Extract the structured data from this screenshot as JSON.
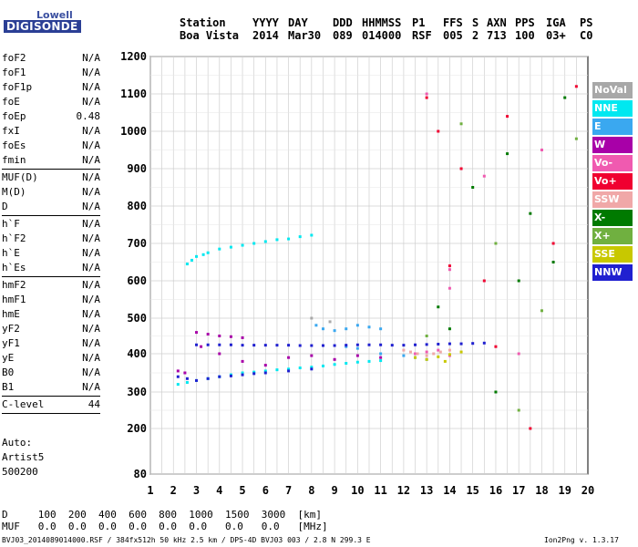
{
  "logo": {
    "line1": "Lowell",
    "line2": "DIGISONDE"
  },
  "header": {
    "cols": [
      {
        "top": "Station",
        "bottom": "Boa Vista"
      },
      {
        "top": "YYYY",
        "bottom": "2014"
      },
      {
        "top": "DAY",
        "bottom": "Mar30"
      },
      {
        "top": "DDD",
        "bottom": "089"
      },
      {
        "top": "HHMMSS",
        "bottom": "014000"
      },
      {
        "top": "P1",
        "bottom": "RSF"
      },
      {
        "top": "FFS",
        "bottom": "005"
      },
      {
        "top": "S",
        "bottom": "2"
      },
      {
        "top": "AXN",
        "bottom": "713"
      },
      {
        "top": "PPS",
        "bottom": "100"
      },
      {
        "top": "IGA",
        "bottom": "03+"
      },
      {
        "top": "PS",
        "bottom": "C0"
      }
    ]
  },
  "params": [
    [
      {
        "name": "foF2",
        "value": "N/A"
      },
      {
        "name": "foF1",
        "value": "N/A"
      },
      {
        "name": "foF1p",
        "value": "N/A"
      },
      {
        "name": "foE",
        "value": "N/A"
      },
      {
        "name": "foEp",
        "value": "0.48"
      },
      {
        "name": "fxI",
        "value": "N/A"
      },
      {
        "name": "foEs",
        "value": "N/A"
      },
      {
        "name": "fmin",
        "value": "N/A"
      }
    ],
    [
      {
        "name": "MUF(D)",
        "value": "N/A"
      },
      {
        "name": "M(D)",
        "value": "N/A"
      },
      {
        "name": "D",
        "value": "N/A"
      }
    ],
    [
      {
        "name": "h`F",
        "value": "N/A"
      },
      {
        "name": "h`F2",
        "value": "N/A"
      },
      {
        "name": "h`E",
        "value": "N/A"
      },
      {
        "name": "h`Es",
        "value": "N/A"
      }
    ],
    [
      {
        "name": "hmF2",
        "value": "N/A"
      },
      {
        "name": "hmF1",
        "value": "N/A"
      },
      {
        "name": "hmE",
        "value": "N/A"
      },
      {
        "name": "yF2",
        "value": "N/A"
      },
      {
        "name": "yF1",
        "value": "N/A"
      },
      {
        "name": "yE",
        "value": "N/A"
      },
      {
        "name": "B0",
        "value": "N/A"
      },
      {
        "name": "B1",
        "value": "N/A"
      }
    ],
    [
      {
        "name": "C-level",
        "value": "44"
      }
    ]
  ],
  "auto": [
    "Auto:",
    "Artist5",
    "500200"
  ],
  "legend": [
    {
      "label": "NoVal",
      "color": "#a8a8a8"
    },
    {
      "label": "NNE",
      "color": "#00e8f0"
    },
    {
      "label": "E",
      "color": "#3aa8f0"
    },
    {
      "label": "W",
      "color": "#a800a8"
    },
    {
      "label": "Vo-",
      "color": "#f05ab0"
    },
    {
      "label": "Vo+",
      "color": "#f00030"
    },
    {
      "label": "SSW",
      "color": "#f0a8a8"
    },
    {
      "label": "X-",
      "color": "#007a00"
    },
    {
      "label": "X+",
      "color": "#70b040"
    },
    {
      "label": "SSE",
      "color": "#c8c800"
    },
    {
      "label": "NNW",
      "color": "#2020d0"
    }
  ],
  "muf_table": {
    "row1": "D     100  200  400  600  800  1000  1500  3000  [km]",
    "row2": "MUF   0.0  0.0  0.0  0.0  0.0  0.0   0.0   0.0   [MHz]"
  },
  "footer": {
    "left": "BVJ03_2014089014000.RSF / 384fx512h 50 kHz 2.5 km / DPS-4D BVJ03 003 / 2.8 N 299.3 E",
    "right": "Ion2Png v. 1.3.17"
  },
  "chart_data": {
    "type": "scatter",
    "title": "",
    "xlabel": "",
    "ylabel": "",
    "xlim": [
      1,
      20
    ],
    "ylim": [
      80,
      1200
    ],
    "x_ticks": [
      1,
      2,
      3,
      4,
      5,
      6,
      7,
      8,
      9,
      10,
      11,
      12,
      13,
      14,
      15,
      16,
      17,
      18,
      19,
      20
    ],
    "y_ticks": [
      80,
      200,
      300,
      400,
      500,
      600,
      700,
      800,
      900,
      1000,
      1100,
      1200
    ],
    "grid": true,
    "legend_position": "right",
    "series": [
      {
        "name": "NNE",
        "color": "#00e8f0",
        "points": [
          [
            2.6,
            645
          ],
          [
            2.8,
            655
          ],
          [
            3.0,
            665
          ],
          [
            3.3,
            670
          ],
          [
            3.5,
            675
          ],
          [
            4.0,
            685
          ],
          [
            4.5,
            690
          ],
          [
            5.0,
            695
          ],
          [
            5.5,
            700
          ],
          [
            6.0,
            705
          ],
          [
            6.5,
            710
          ],
          [
            7.0,
            712
          ],
          [
            7.5,
            718
          ],
          [
            8.0,
            722
          ],
          [
            2.2,
            320
          ],
          [
            2.6,
            325
          ],
          [
            3.0,
            330
          ],
          [
            3.5,
            335
          ],
          [
            4.0,
            340
          ],
          [
            4.5,
            345
          ],
          [
            5.0,
            350
          ],
          [
            5.5,
            352
          ],
          [
            6.0,
            355
          ],
          [
            6.5,
            358
          ],
          [
            7.0,
            360
          ],
          [
            7.5,
            363
          ],
          [
            8.0,
            365
          ],
          [
            8.5,
            368
          ],
          [
            9.0,
            372
          ],
          [
            9.5,
            375
          ],
          [
            10.0,
            378
          ],
          [
            10.5,
            380
          ],
          [
            11.0,
            382
          ]
        ]
      },
      {
        "name": "E",
        "color": "#3aa8f0",
        "points": [
          [
            8.2,
            480
          ],
          [
            8.5,
            470
          ],
          [
            9.0,
            465
          ],
          [
            9.5,
            470
          ],
          [
            10.0,
            480
          ],
          [
            10.5,
            475
          ],
          [
            11.0,
            470
          ],
          [
            9.5,
            420
          ],
          [
            10.0,
            415
          ],
          [
            11.0,
            400
          ],
          [
            12.0,
            395
          ],
          [
            12.5,
            390
          ],
          [
            13.0,
            385
          ]
        ]
      },
      {
        "name": "W",
        "color": "#a800a8",
        "points": [
          [
            2.2,
            355
          ],
          [
            2.5,
            350
          ],
          [
            3.0,
            460
          ],
          [
            3.5,
            455
          ],
          [
            4.0,
            450
          ],
          [
            4.5,
            448
          ],
          [
            5.0,
            445
          ],
          [
            3.2,
            420
          ],
          [
            4.0,
            400
          ],
          [
            5.0,
            380
          ],
          [
            6.0,
            370
          ],
          [
            7.0,
            390
          ],
          [
            8.0,
            395
          ],
          [
            9.0,
            385
          ],
          [
            10.0,
            395
          ],
          [
            11.0,
            390
          ]
        ]
      },
      {
        "name": "Vo-",
        "color": "#f05ab0",
        "points": [
          [
            12.5,
            400
          ],
          [
            13.0,
            405
          ],
          [
            13.5,
            410
          ],
          [
            14.0,
            395
          ],
          [
            14.0,
            630
          ],
          [
            14.0,
            580
          ],
          [
            13.0,
            1100
          ],
          [
            15.5,
            880
          ],
          [
            18.0,
            950
          ],
          [
            17.0,
            400
          ]
        ]
      },
      {
        "name": "Vo+",
        "color": "#f00030",
        "points": [
          [
            13.0,
            1090
          ],
          [
            13.5,
            1000
          ],
          [
            14.0,
            640
          ],
          [
            14.5,
            900
          ],
          [
            16.0,
            420
          ],
          [
            17.5,
            200
          ],
          [
            18.5,
            700
          ],
          [
            19.5,
            1120
          ],
          [
            15.5,
            600
          ],
          [
            16.5,
            1040
          ]
        ]
      },
      {
        "name": "SSW",
        "color": "#f0a8a8",
        "points": [
          [
            12.0,
            410
          ],
          [
            12.3,
            405
          ],
          [
            12.6,
            400
          ],
          [
            13.0,
            395
          ],
          [
            13.3,
            400
          ],
          [
            13.6,
            405
          ],
          [
            14.0,
            410
          ]
        ]
      },
      {
        "name": "X-",
        "color": "#007a00",
        "points": [
          [
            13.5,
            530
          ],
          [
            14.0,
            470
          ],
          [
            16.5,
            940
          ],
          [
            17.5,
            780
          ],
          [
            18.5,
            650
          ],
          [
            19.0,
            1090
          ],
          [
            15.0,
            850
          ],
          [
            16.0,
            300
          ],
          [
            17.0,
            600
          ]
        ]
      },
      {
        "name": "X+",
        "color": "#70b040",
        "points": [
          [
            13.0,
            450
          ],
          [
            14.5,
            1020
          ],
          [
            18.0,
            520
          ],
          [
            19.5,
            980
          ],
          [
            16.0,
            700
          ],
          [
            17.0,
            250
          ]
        ]
      },
      {
        "name": "SSE",
        "color": "#c8c800",
        "points": [
          [
            12.5,
            390
          ],
          [
            13.0,
            385
          ],
          [
            13.5,
            392
          ],
          [
            14.0,
            398
          ],
          [
            14.5,
            405
          ],
          [
            13.8,
            380
          ]
        ]
      },
      {
        "name": "NNW",
        "color": "#2020d0",
        "points": [
          [
            3.0,
            425
          ],
          [
            3.5,
            425
          ],
          [
            4.0,
            425
          ],
          [
            4.5,
            425
          ],
          [
            5.0,
            424
          ],
          [
            5.5,
            424
          ],
          [
            6.0,
            424
          ],
          [
            6.5,
            424
          ],
          [
            7.0,
            424
          ],
          [
            7.5,
            423
          ],
          [
            8.0,
            423
          ],
          [
            8.5,
            423
          ],
          [
            9.0,
            423
          ],
          [
            9.5,
            424
          ],
          [
            10.0,
            425
          ],
          [
            10.5,
            425
          ],
          [
            11.0,
            425
          ],
          [
            11.5,
            424
          ],
          [
            12.0,
            424
          ],
          [
            12.5,
            425
          ],
          [
            13.0,
            426
          ],
          [
            13.5,
            427
          ],
          [
            14.0,
            428
          ],
          [
            14.5,
            428
          ],
          [
            15.0,
            429
          ],
          [
            15.5,
            430
          ],
          [
            2.2,
            340
          ],
          [
            2.6,
            335
          ],
          [
            3.0,
            330
          ],
          [
            3.5,
            335
          ],
          [
            4.0,
            340
          ],
          [
            4.5,
            342
          ],
          [
            5.0,
            345
          ],
          [
            5.5,
            348
          ],
          [
            6.0,
            350
          ],
          [
            7.0,
            355
          ],
          [
            8.0,
            360
          ]
        ]
      },
      {
        "name": "NoVal",
        "color": "#a8a8a8",
        "points": [
          [
            8.0,
            500
          ],
          [
            8.8,
            490
          ]
        ]
      }
    ]
  }
}
